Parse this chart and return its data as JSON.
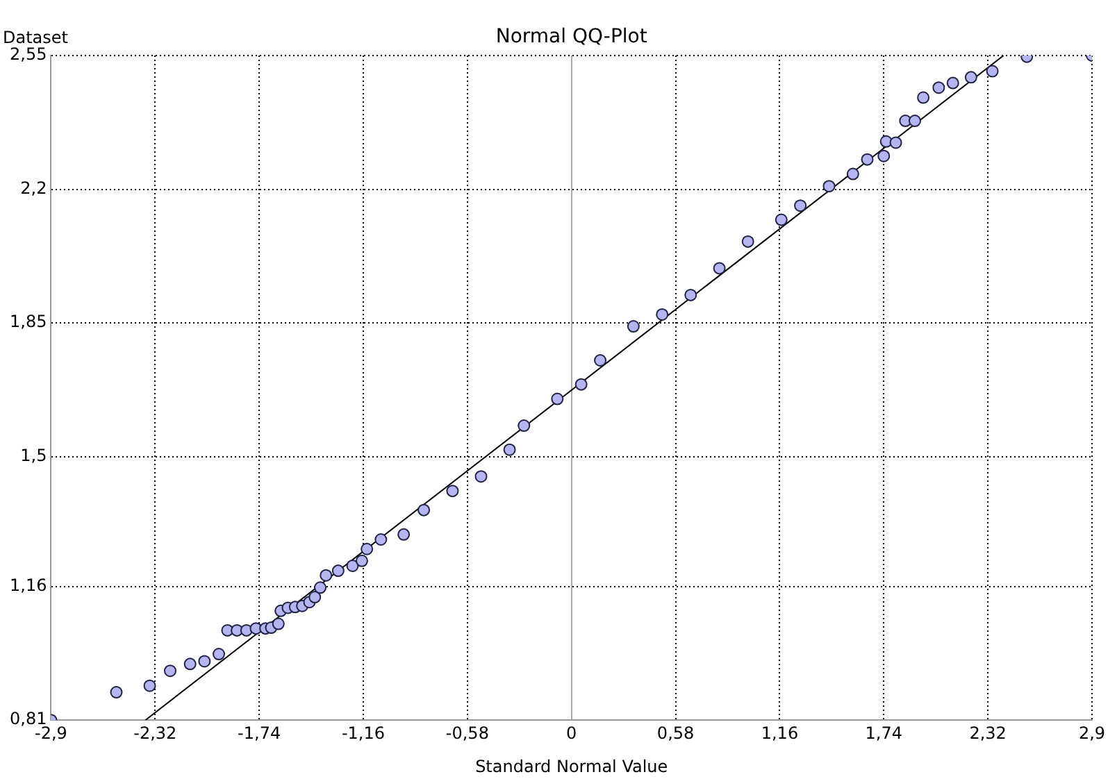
{
  "chart_data": {
    "type": "scatter",
    "title": "Normal QQ-Plot",
    "xlabel": "Standard Normal Value",
    "ylabel": "Dataset",
    "xlim": [
      -2.9,
      2.9
    ],
    "ylim": [
      0.81,
      2.55
    ],
    "xticks": [
      {
        "value": -2.9,
        "label": "-2,9"
      },
      {
        "value": -2.32,
        "label": "-2,32"
      },
      {
        "value": -1.74,
        "label": "-1,74"
      },
      {
        "value": -1.16,
        "label": "-1,16"
      },
      {
        "value": -0.58,
        "label": "-0,58"
      },
      0,
      {
        "value": 0.58,
        "label": "0,58"
      },
      {
        "value": 1.16,
        "label": "1,16"
      },
      {
        "value": 1.74,
        "label": "1,74"
      },
      {
        "value": 2.32,
        "label": "2,32"
      },
      {
        "value": 2.9,
        "label": "2,9"
      }
    ],
    "yticks": [
      {
        "value": 0.81,
        "label": "0,81"
      },
      {
        "value": 1.16,
        "label": "1,16"
      },
      {
        "value": 1.5,
        "label": "1,5"
      },
      {
        "value": 1.85,
        "label": "1,85"
      },
      {
        "value": 2.2,
        "label": "2,2"
      },
      {
        "value": 2.55,
        "label": "2,55"
      }
    ],
    "grid": true,
    "marker": "circle",
    "legend": false,
    "series": [
      {
        "color": "#b4b4f0",
        "x": [
          -2.9,
          -2.536,
          -2.35,
          -2.236,
          -2.125,
          -2.045,
          -1.965,
          -1.917,
          -1.864,
          -1.811,
          -1.758,
          -1.705,
          -1.673,
          -1.633,
          -1.62,
          -1.58,
          -1.54,
          -1.5,
          -1.46,
          -1.43,
          -1.4,
          -1.368,
          -1.3,
          -1.22,
          -1.168,
          -1.14,
          -1.062,
          -0.935,
          -0.823,
          -0.663,
          -0.504,
          -0.345,
          -0.265,
          -0.079,
          0.054,
          0.16,
          0.345,
          0.505,
          0.664,
          0.824,
          0.983,
          1.169,
          1.275,
          1.435,
          1.568,
          1.648,
          1.74,
          1.753,
          1.807,
          1.86,
          1.913,
          1.96,
          2.046,
          2.125,
          2.226,
          2.345,
          2.537,
          2.9
        ],
        "values": [
          0.81,
          0.883,
          0.9,
          0.939,
          0.957,
          0.964,
          0.983,
          1.045,
          1.045,
          1.045,
          1.05,
          1.05,
          1.052,
          1.062,
          1.096,
          1.104,
          1.106,
          1.109,
          1.119,
          1.132,
          1.157,
          1.189,
          1.201,
          1.214,
          1.227,
          1.258,
          1.283,
          1.296,
          1.36,
          1.41,
          1.448,
          1.518,
          1.581,
          1.651,
          1.689,
          1.752,
          1.841,
          1.872,
          1.923,
          1.993,
          2.063,
          2.12,
          2.157,
          2.208,
          2.24,
          2.278,
          2.287,
          2.325,
          2.322,
          2.379,
          2.379,
          2.44,
          2.466,
          2.478,
          2.493,
          2.509,
          2.547,
          2.55
        ]
      },
      {
        "type": "line",
        "color": "#000000",
        "marker": "none",
        "x": [
          -2.374,
          2.407
        ],
        "values": [
          0.81,
          2.55
        ]
      }
    ]
  }
}
